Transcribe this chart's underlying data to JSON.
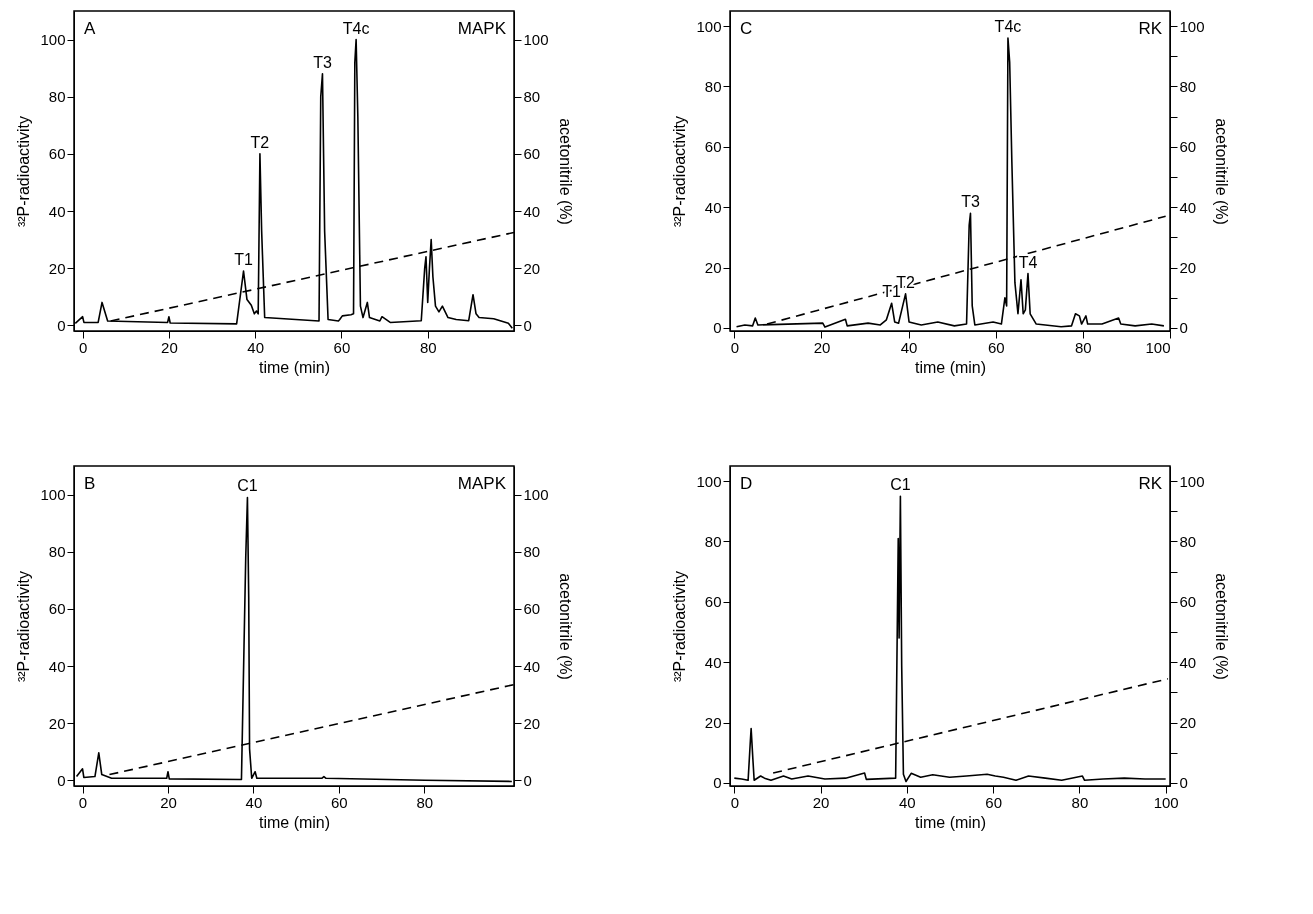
{
  "chart_data": [
    {
      "type": "line",
      "title": "A",
      "subtitle": "MAPK",
      "xlabel": "time (min)",
      "ylabel": "³²P-radioactivity",
      "y2label": "acetonitrile (%)",
      "xlim": [
        -2,
        100
      ],
      "xticks": [
        0,
        20,
        40,
        60,
        80
      ],
      "ylim": [
        -2,
        110
      ],
      "yticks": [
        0,
        20,
        40,
        60,
        80,
        100
      ],
      "y2lim": [
        -2,
        110
      ],
      "y2ticks": [
        0,
        20,
        40,
        60,
        80,
        100
      ],
      "series": [
        {
          "color": "#000000",
          "line_style": "solid",
          "x": [
            -1.7,
            0,
            0.3,
            3.6,
            4.5,
            5.8,
            19.7,
            20,
            20.3,
            35.7,
            37.3,
            38.1,
            39.1,
            39.8,
            40.3,
            40.7,
            41.1,
            41.5,
            42.2,
            54.8,
            55.2,
            55.6,
            56.1,
            56.9,
            59.3,
            59.6,
            60.2,
            62.2,
            62.8,
            63.1,
            63.4,
            63.8,
            64.4,
            65,
            66,
            66.5,
            68.9,
            69.4,
            71.3,
            78.5,
            79.3,
            79.6,
            80,
            80.4,
            80.8,
            81.2,
            81.8,
            82.6,
            83.4,
            84.7,
            86.6,
            89.5,
            90.5,
            91.2,
            91.9,
            95.3,
            98.7,
            99.6
          ],
          "values": [
            0.7,
            3,
            1,
            1,
            8,
            1.5,
            1,
            3,
            0.8,
            0.5,
            19,
            9,
            7,
            4,
            5,
            4,
            60,
            33,
            2.7,
            1.5,
            80,
            88,
            33,
            2,
            1.5,
            2,
            3.3,
            3.7,
            4,
            92,
            100,
            73,
            6.7,
            2.7,
            8,
            2.7,
            1.5,
            3,
            1,
            1.6,
            20,
            24,
            8,
            20,
            30,
            17,
            6.7,
            4.7,
            6.7,
            2.7,
            2,
            1.6,
            10.7,
            4,
            2.7,
            2.3,
            0.7,
            -1
          ]
        },
        {
          "color": "#000000",
          "line_style": "dashed",
          "axis": "y2",
          "x": [
            6.5,
            100
          ],
          "values": [
            1.5,
            32.5
          ]
        }
      ],
      "annotations": [
        {
          "text": "T1",
          "x": 37.3,
          "y": 19
        },
        {
          "text": "T2",
          "x": 41.1,
          "y": 60
        },
        {
          "text": "T3",
          "x": 55.6,
          "y": 88
        },
        {
          "text": "T4c",
          "x": 63.4,
          "y": 100
        }
      ]
    },
    {
      "type": "line",
      "title": "C",
      "subtitle": "RK",
      "xlabel": "time (min)",
      "ylabel": "³²P-radioactivity",
      "y2label": "acetonitrile (%)",
      "xlim": [
        -1,
        100
      ],
      "xticks": [
        0,
        20,
        40,
        60,
        80,
        100
      ],
      "ylim": [
        -1,
        105
      ],
      "yticks": [
        0,
        {
          "value": 10,
          "label": null
        },
        20,
        {
          "value": 30,
          "label": null
        },
        40,
        {
          "value": 50,
          "label": null
        },
        60,
        {
          "value": 70,
          "label": null
        },
        80,
        {
          "value": 90,
          "label": null
        },
        100
      ],
      "y2lim": [
        -1,
        105
      ],
      "y2ticks": [
        0,
        {
          "value": 10,
          "label": null
        },
        20,
        {
          "value": 30,
          "label": null
        },
        40,
        {
          "value": 50,
          "label": null
        },
        60,
        {
          "value": 70,
          "label": null
        },
        80,
        {
          "value": 90,
          "label": null
        },
        100
      ],
      "series": [
        {
          "color": "#000000",
          "line_style": "solid",
          "x": [
            0.5,
            2.4,
            4.2,
            4.8,
            5.4,
            20.3,
            20.8,
            25.5,
            25.9,
            30.7,
            33.5,
            34.9,
            36.1,
            36.8,
            37.7,
            39.3,
            40.1,
            42.9,
            46.7,
            50.5,
            53.3,
            53.9,
            54.2,
            54.6,
            55.2,
            59.4,
            61.3,
            62.1,
            62.5,
            62.8,
            63.2,
            63.7,
            64.4,
            65.1,
            65.8,
            66.3,
            66.8,
            67.4,
            67.9,
            69.3,
            75,
            77.4,
            78.3,
            79.2,
            79.7,
            80.7,
            81.1,
            84.4,
            88.2,
            88.7,
            92,
            95.8,
            98.6
          ],
          "values": [
            0.4,
            1,
            0.7,
            3.3,
            1,
            1.6,
            0.3,
            2.9,
            0.7,
            1.6,
            1,
            2.7,
            8.2,
            2,
            1.6,
            11.3,
            2,
            1,
            2,
            0.7,
            1.3,
            34,
            38,
            7.3,
            1,
            2,
            1.3,
            10,
            7.3,
            96,
            88,
            55,
            15,
            4.7,
            16,
            4.7,
            6,
            18,
            4.7,
            1.3,
            0.4,
            0.7,
            4.7,
            4,
            1.3,
            4,
            1.3,
            1.3,
            3.3,
            1.3,
            0.7,
            1.3,
            0.7
          ]
        },
        {
          "color": "#000000",
          "line_style": "dashed",
          "axis": "y2",
          "x": [
            7.5,
            99
          ],
          "values": [
            1.3,
            37
          ]
        }
      ],
      "annotations": [
        {
          "text": "T1",
          "x": 36.1,
          "y": 8.2
        },
        {
          "text": "T2",
          "x": 39.3,
          "y": 11.3
        },
        {
          "text": "T3",
          "x": 54.2,
          "y": 38
        },
        {
          "text": "T4c",
          "x": 62.8,
          "y": 96
        },
        {
          "text": "T4",
          "x": 67.4,
          "y": 18
        }
      ]
    },
    {
      "type": "line",
      "title": "B",
      "subtitle": "MAPK",
      "xlabel": "time (min)",
      "ylabel": "³²P-radioactivity",
      "y2label": "acetonitrile (%)",
      "xlim": [
        -2,
        101
      ],
      "xticks": [
        0,
        20,
        40,
        60,
        80
      ],
      "ylim": [
        -2,
        110
      ],
      "yticks": [
        0,
        20,
        40,
        60,
        80,
        100
      ],
      "y2lim": [
        -2,
        110
      ],
      "y2ticks": [
        0,
        20,
        40,
        60,
        80,
        100
      ],
      "series": [
        {
          "color": "#000000",
          "line_style": "solid",
          "x": [
            -1.4,
            0,
            0.3,
            2.9,
            3.8,
            4.5,
            6.8,
            19.7,
            20,
            20.3,
            37.2,
            37.8,
            38.2,
            38.6,
            38.9,
            39.1,
            39.6,
            40.4,
            40.8,
            56,
            56.5,
            57,
            80.2,
            100.5
          ],
          "values": [
            1.3,
            4,
            1,
            1.3,
            9.6,
            2,
            0.7,
            0.7,
            3,
            0.5,
            0.3,
            47,
            78,
            99,
            64,
            11,
            0.7,
            3,
            0.7,
            0.7,
            1.3,
            0.7,
            0,
            -0.4
          ]
        },
        {
          "color": "#000000",
          "line_style": "dashed",
          "axis": "y2",
          "x": [
            6.3,
            101
          ],
          "values": [
            2,
            33.5
          ]
        }
      ],
      "annotations": [
        {
          "text": "C1",
          "x": 38.6,
          "y": 99
        }
      ]
    },
    {
      "type": "line",
      "title": "D",
      "subtitle": "RK",
      "xlabel": "time (min)",
      "ylabel": "³²P-radioactivity",
      "y2label": "acetonitrile (%)",
      "xlim": [
        -1,
        101
      ],
      "xticks": [
        0,
        20,
        40,
        60,
        80,
        100
      ],
      "ylim": [
        -1,
        105
      ],
      "yticks": [
        0,
        {
          "value": 10,
          "label": null
        },
        20,
        {
          "value": 30,
          "label": null
        },
        40,
        {
          "value": 50,
          "label": null
        },
        60,
        {
          "value": 70,
          "label": null
        },
        80,
        {
          "value": 90,
          "label": null
        },
        100
      ],
      "y2lim": [
        -1,
        105
      ],
      "y2ticks": [
        0,
        {
          "value": 10,
          "label": null
        },
        20,
        {
          "value": 30,
          "label": null
        },
        40,
        {
          "value": 50,
          "label": null
        },
        60,
        {
          "value": 70,
          "label": null
        },
        80,
        {
          "value": 90,
          "label": null
        },
        100
      ],
      "series": [
        {
          "color": "#000000",
          "line_style": "solid",
          "x": [
            0,
            1.7,
            3.2,
            3.7,
            3.9,
            4.3,
            4.6,
            6.1,
            7,
            8.5,
            11.4,
            13.3,
            17.1,
            21,
            25.8,
            30.2,
            30.6,
            37.4,
            38,
            38.2,
            38.5,
            38.8,
            39.2,
            39.8,
            41,
            43.2,
            46,
            49.9,
            53.8,
            58.6,
            60.5,
            62.4,
            65.3,
            68.2,
            72.1,
            75.9,
            80.7,
            81.2,
            85.5,
            90.4,
            95.2,
            100
          ],
          "values": [
            1.6,
            1.3,
            0.9,
            13.5,
            18,
            8,
            0.9,
            2.3,
            1.6,
            0.9,
            2.3,
            1.3,
            2.3,
            1.3,
            1.6,
            3.3,
            1.2,
            1.6,
            81,
            48,
            95,
            39,
            2.9,
            0.5,
            3.2,
            1.9,
            2.7,
            1.9,
            2.3,
            2.9,
            2.3,
            1.9,
            0.9,
            2.3,
            1.6,
            0.9,
            2.3,
            0.9,
            1.3,
            1.6,
            1.3,
            1.3
          ]
        },
        {
          "color": "#000000",
          "line_style": "dashed",
          "axis": "y2",
          "x": [
            9,
            100.5
          ],
          "values": [
            3.3,
            34.5
          ]
        }
      ],
      "annotations": [
        {
          "text": "C1",
          "x": 38.5,
          "y": 95
        }
      ]
    }
  ]
}
